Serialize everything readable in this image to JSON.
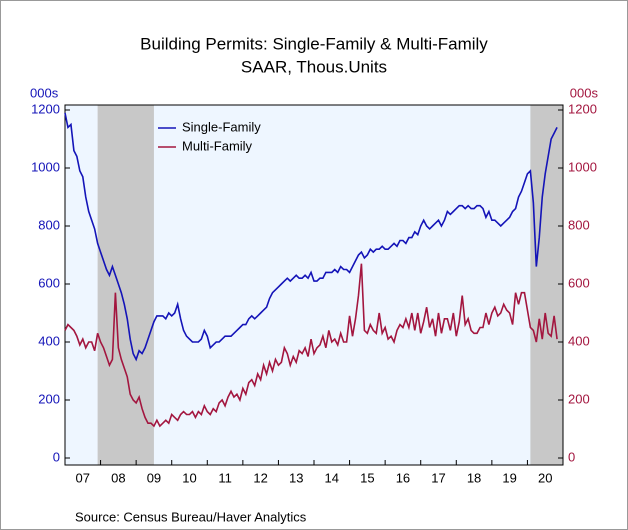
{
  "chart_data": {
    "type": "line",
    "title": "Building Permits: Single-Family & Multi-Family",
    "subtitle": "SAAR, Thous.Units",
    "y_axis_label": "000s",
    "y2_axis_label": "000s",
    "source": "Source: Census Bureau/Haver Analytics",
    "xlim": [
      2007,
      2021
    ],
    "xticks": [
      {
        "value": 2007,
        "label": "07"
      },
      {
        "value": 2008,
        "label": "08"
      },
      {
        "value": 2009,
        "label": "09"
      },
      {
        "value": 2010,
        "label": "10"
      },
      {
        "value": 2011,
        "label": "11"
      },
      {
        "value": 2012,
        "label": "12"
      },
      {
        "value": 2013,
        "label": "13"
      },
      {
        "value": 2014,
        "label": "14"
      },
      {
        "value": 2015,
        "label": "15"
      },
      {
        "value": 2016,
        "label": "16"
      },
      {
        "value": 2017,
        "label": "17"
      },
      {
        "value": 2018,
        "label": "18"
      },
      {
        "value": 2019,
        "label": "19"
      },
      {
        "value": 2020,
        "label": "20"
      }
    ],
    "ylim": [
      0,
      1200
    ],
    "yticks": [
      0,
      200,
      400,
      600,
      800,
      1000,
      1200
    ],
    "y2lim": [
      0,
      1200
    ],
    "y2ticks": [
      0,
      200,
      400,
      600,
      800,
      1000,
      1200
    ],
    "recessions": [
      [
        2007.917,
        2009.5
      ],
      [
        2020.083,
        2021
      ]
    ],
    "legend": "upper left",
    "x": [
      2007,
      2007.083,
      2007.167,
      2007.25,
      2007.333,
      2007.417,
      2007.5,
      2007.583,
      2007.667,
      2007.75,
      2007.833,
      2007.917,
      2008,
      2008.083,
      2008.167,
      2008.25,
      2008.333,
      2008.417,
      2008.5,
      2008.583,
      2008.667,
      2008.75,
      2008.833,
      2008.917,
      2009,
      2009.083,
      2009.167,
      2009.25,
      2009.333,
      2009.417,
      2009.5,
      2009.583,
      2009.667,
      2009.75,
      2009.833,
      2009.917,
      2010,
      2010.083,
      2010.167,
      2010.25,
      2010.333,
      2010.417,
      2010.5,
      2010.583,
      2010.667,
      2010.75,
      2010.833,
      2010.917,
      2011,
      2011.083,
      2011.167,
      2011.25,
      2011.333,
      2011.417,
      2011.5,
      2011.583,
      2011.667,
      2011.75,
      2011.833,
      2011.917,
      2012,
      2012.083,
      2012.167,
      2012.25,
      2012.333,
      2012.417,
      2012.5,
      2012.583,
      2012.667,
      2012.75,
      2012.833,
      2012.917,
      2013,
      2013.083,
      2013.167,
      2013.25,
      2013.333,
      2013.417,
      2013.5,
      2013.583,
      2013.667,
      2013.75,
      2013.833,
      2013.917,
      2014,
      2014.083,
      2014.167,
      2014.25,
      2014.333,
      2014.417,
      2014.5,
      2014.583,
      2014.667,
      2014.75,
      2014.833,
      2014.917,
      2015,
      2015.083,
      2015.167,
      2015.25,
      2015.333,
      2015.417,
      2015.5,
      2015.583,
      2015.667,
      2015.75,
      2015.833,
      2015.917,
      2016,
      2016.083,
      2016.167,
      2016.25,
      2016.333,
      2016.417,
      2016.5,
      2016.583,
      2016.667,
      2016.75,
      2016.833,
      2016.917,
      2017,
      2017.083,
      2017.167,
      2017.25,
      2017.333,
      2017.417,
      2017.5,
      2017.583,
      2017.667,
      2017.75,
      2017.833,
      2017.917,
      2018,
      2018.083,
      2018.167,
      2018.25,
      2018.333,
      2018.417,
      2018.5,
      2018.583,
      2018.667,
      2018.75,
      2018.833,
      2018.917,
      2019,
      2019.083,
      2019.167,
      2019.25,
      2019.333,
      2019.417,
      2019.5,
      2019.583,
      2019.667,
      2019.75,
      2019.833,
      2019.917,
      2020,
      2020.083,
      2020.167,
      2020.25,
      2020.333,
      2020.417,
      2020.5,
      2020.583,
      2020.667,
      2020.75,
      2020.833
    ],
    "series": [
      {
        "name": "Single-Family",
        "color": "#1414b8",
        "axis": "y",
        "values": [
          1190,
          1140,
          1150,
          1060,
          1040,
          990,
          970,
          900,
          850,
          820,
          790,
          740,
          710,
          680,
          650,
          630,
          660,
          630,
          600,
          570,
          530,
          480,
          410,
          360,
          340,
          370,
          360,
          380,
          410,
          440,
          470,
          490,
          490,
          490,
          480,
          500,
          490,
          500,
          530,
          480,
          440,
          420,
          410,
          400,
          400,
          400,
          410,
          440,
          420,
          380,
          390,
          400,
          400,
          410,
          420,
          420,
          420,
          430,
          440,
          450,
          460,
          460,
          480,
          490,
          480,
          490,
          500,
          510,
          520,
          550,
          570,
          580,
          590,
          600,
          610,
          620,
          610,
          620,
          630,
          620,
          620,
          630,
          620,
          640,
          610,
          610,
          620,
          620,
          640,
          640,
          640,
          650,
          640,
          660,
          650,
          650,
          640,
          660,
          680,
          700,
          710,
          690,
          700,
          720,
          710,
          720,
          720,
          730,
          720,
          720,
          730,
          740,
          730,
          750,
          750,
          740,
          760,
          760,
          780,
          770,
          800,
          820,
          800,
          790,
          800,
          810,
          820,
          800,
          820,
          850,
          840,
          850,
          860,
          870,
          870,
          860,
          870,
          860,
          860,
          870,
          870,
          860,
          830,
          850,
          820,
          820,
          810,
          800,
          810,
          820,
          830,
          850,
          860,
          900,
          920,
          950,
          980,
          990,
          880,
          660,
          760,
          900,
          980,
          1040,
          1100,
          1120,
          1140
        ]
      },
      {
        "name": "Multi-Family",
        "color": "#a3163f",
        "axis": "y2",
        "values": [
          440,
          460,
          450,
          440,
          420,
          390,
          410,
          380,
          400,
          400,
          370,
          430,
          400,
          380,
          350,
          320,
          340,
          570,
          380,
          340,
          310,
          280,
          220,
          200,
          190,
          210,
          170,
          140,
          120,
          120,
          110,
          130,
          110,
          120,
          130,
          120,
          150,
          140,
          130,
          150,
          160,
          150,
          150,
          160,
          140,
          160,
          150,
          180,
          160,
          150,
          170,
          160,
          190,
          200,
          180,
          210,
          230,
          210,
          220,
          200,
          240,
          220,
          260,
          270,
          250,
          290,
          270,
          320,
          290,
          330,
          300,
          340,
          320,
          330,
          380,
          360,
          320,
          350,
          330,
          370,
          360,
          380,
          350,
          410,
          360,
          380,
          390,
          420,
          380,
          440,
          400,
          410,
          390,
          430,
          400,
          400,
          490,
          420,
          480,
          560,
          670,
          440,
          430,
          460,
          440,
          430,
          500,
          430,
          450,
          410,
          420,
          400,
          440,
          460,
          450,
          480,
          450,
          500,
          440,
          500,
          430,
          470,
          520,
          450,
          480,
          420,
          500,
          430,
          480,
          480,
          440,
          500,
          420,
          470,
          560,
          460,
          480,
          440,
          430,
          430,
          450,
          450,
          500,
          460,
          500,
          520,
          490,
          500,
          530,
          510,
          500,
          460,
          570,
          530,
          570,
          570,
          510,
          450,
          440,
          400,
          480,
          410,
          500,
          430,
          420,
          490,
          410
        ]
      }
    ]
  }
}
